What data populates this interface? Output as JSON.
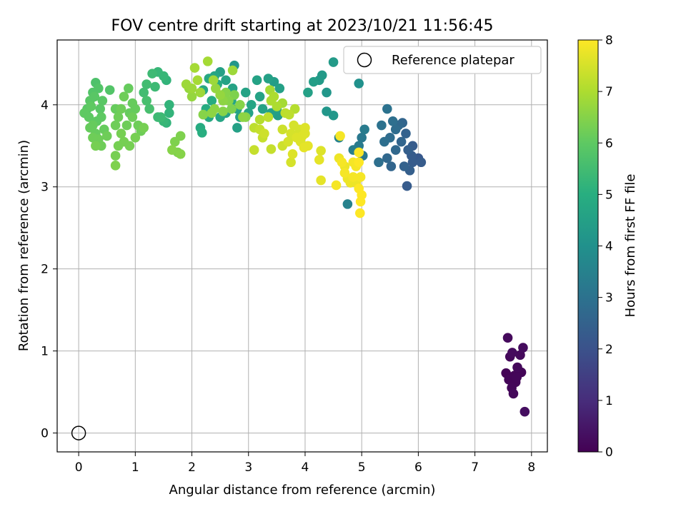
{
  "chart_data": {
    "type": "scatter",
    "title": "FOV centre drift starting at 2023/10/21 11:56:45",
    "xlabel": "Angular distance from reference (arcmin)",
    "ylabel": "Rotation from reference (arcmin)",
    "xlim": [
      -0.38,
      8.28
    ],
    "ylim": [
      -0.23,
      4.79
    ],
    "xticks": [
      0,
      1,
      2,
      3,
      4,
      5,
      6,
      7,
      8
    ],
    "yticks": [
      0,
      1,
      2,
      3,
      4
    ],
    "grid": true,
    "legend": {
      "position": "top-right",
      "entries": [
        "Reference platepar"
      ]
    },
    "reference_point": {
      "x": 0,
      "y": 0,
      "label": "Reference platepar"
    },
    "colorbar": {
      "label": "Hours from first FF file",
      "range": [
        0,
        8
      ],
      "ticks": [
        0,
        1,
        2,
        3,
        4,
        5,
        6,
        7,
        8
      ],
      "colormap": "viridis"
    },
    "points": [
      {
        "x": 7.55,
        "y": 0.73,
        "c": 0.05
      },
      {
        "x": 7.6,
        "y": 0.65,
        "c": 0.1
      },
      {
        "x": 7.65,
        "y": 0.55,
        "c": 0.12
      },
      {
        "x": 7.68,
        "y": 0.48,
        "c": 0.15
      },
      {
        "x": 7.7,
        "y": 0.7,
        "c": 0.1
      },
      {
        "x": 7.75,
        "y": 0.8,
        "c": 0.15
      },
      {
        "x": 7.8,
        "y": 0.95,
        "c": 0.2
      },
      {
        "x": 7.85,
        "y": 1.04,
        "c": 0.25
      },
      {
        "x": 7.58,
        "y": 1.16,
        "c": 0.2
      },
      {
        "x": 7.62,
        "y": 0.93,
        "c": 0.15
      },
      {
        "x": 7.72,
        "y": 0.62,
        "c": 0.1
      },
      {
        "x": 7.88,
        "y": 0.26,
        "c": 0.3
      },
      {
        "x": 7.82,
        "y": 0.74,
        "c": 0.1
      },
      {
        "x": 7.66,
        "y": 0.98,
        "c": 0.22
      },
      {
        "x": 7.74,
        "y": 0.68,
        "c": 0.12
      },
      {
        "x": 5.8,
        "y": 3.01,
        "c": 2.3
      },
      {
        "x": 5.85,
        "y": 3.2,
        "c": 2.4
      },
      {
        "x": 5.9,
        "y": 3.3,
        "c": 2.3
      },
      {
        "x": 6.0,
        "y": 3.35,
        "c": 2.2
      },
      {
        "x": 6.05,
        "y": 3.3,
        "c": 2.3
      },
      {
        "x": 5.75,
        "y": 3.25,
        "c": 2.5
      },
      {
        "x": 5.82,
        "y": 3.45,
        "c": 2.4
      },
      {
        "x": 5.88,
        "y": 3.38,
        "c": 2.3
      },
      {
        "x": 5.7,
        "y": 3.55,
        "c": 2.6
      },
      {
        "x": 5.78,
        "y": 3.65,
        "c": 2.5
      },
      {
        "x": 5.65,
        "y": 3.75,
        "c": 2.7
      },
      {
        "x": 5.6,
        "y": 3.7,
        "c": 2.8
      },
      {
        "x": 5.55,
        "y": 3.8,
        "c": 2.9
      },
      {
        "x": 5.45,
        "y": 3.95,
        "c": 3.0
      },
      {
        "x": 5.5,
        "y": 3.6,
        "c": 2.8
      },
      {
        "x": 5.4,
        "y": 3.55,
        "c": 2.9
      },
      {
        "x": 5.35,
        "y": 3.75,
        "c": 3.0
      },
      {
        "x": 5.45,
        "y": 3.35,
        "c": 2.7
      },
      {
        "x": 5.52,
        "y": 3.25,
        "c": 2.6
      },
      {
        "x": 5.6,
        "y": 3.45,
        "c": 2.7
      },
      {
        "x": 5.3,
        "y": 3.3,
        "c": 2.9
      },
      {
        "x": 5.72,
        "y": 3.78,
        "c": 2.6
      },
      {
        "x": 5.9,
        "y": 3.5,
        "c": 2.3
      },
      {
        "x": 5.0,
        "y": 3.6,
        "c": 3.2
      },
      {
        "x": 5.05,
        "y": 3.7,
        "c": 3.3
      },
      {
        "x": 4.95,
        "y": 3.5,
        "c": 3.3
      },
      {
        "x": 5.02,
        "y": 3.38,
        "c": 3.2
      },
      {
        "x": 4.85,
        "y": 3.45,
        "c": 3.4
      },
      {
        "x": 4.75,
        "y": 2.79,
        "c": 3.5
      },
      {
        "x": 4.6,
        "y": 3.6,
        "c": 3.5
      },
      {
        "x": 4.95,
        "y": 4.26,
        "c": 4.0
      },
      {
        "x": 4.5,
        "y": 4.52,
        "c": 4.3
      },
      {
        "x": 4.3,
        "y": 4.36,
        "c": 4.3
      },
      {
        "x": 4.25,
        "y": 4.3,
        "c": 4.3
      },
      {
        "x": 4.15,
        "y": 4.28,
        "c": 4.4
      },
      {
        "x": 4.05,
        "y": 4.15,
        "c": 4.5
      },
      {
        "x": 4.38,
        "y": 4.15,
        "c": 4.2
      },
      {
        "x": 4.38,
        "y": 3.92,
        "c": 4.2
      },
      {
        "x": 4.5,
        "y": 3.87,
        "c": 4.2
      },
      {
        "x": 3.55,
        "y": 4.2,
        "c": 4.5
      },
      {
        "x": 3.45,
        "y": 4.28,
        "c": 4.4
      },
      {
        "x": 3.35,
        "y": 4.32,
        "c": 4.5
      },
      {
        "x": 3.15,
        "y": 4.3,
        "c": 4.6
      },
      {
        "x": 3.2,
        "y": 4.1,
        "c": 4.6
      },
      {
        "x": 3.05,
        "y": 4.0,
        "c": 4.7
      },
      {
        "x": 3.25,
        "y": 3.95,
        "c": 4.6
      },
      {
        "x": 3.4,
        "y": 3.9,
        "c": 4.5
      },
      {
        "x": 3.5,
        "y": 3.95,
        "c": 4.5
      },
      {
        "x": 3.52,
        "y": 3.87,
        "c": 4.4
      },
      {
        "x": 2.95,
        "y": 4.15,
        "c": 4.6
      },
      {
        "x": 2.75,
        "y": 4.48,
        "c": 4.2
      },
      {
        "x": 2.5,
        "y": 4.4,
        "c": 4.5
      },
      {
        "x": 2.6,
        "y": 4.3,
        "c": 4.6
      },
      {
        "x": 2.4,
        "y": 4.35,
        "c": 4.7
      },
      {
        "x": 2.3,
        "y": 4.32,
        "c": 4.8
      },
      {
        "x": 2.2,
        "y": 4.18,
        "c": 4.8
      },
      {
        "x": 2.35,
        "y": 4.05,
        "c": 4.9
      },
      {
        "x": 2.25,
        "y": 3.95,
        "c": 4.9
      },
      {
        "x": 2.3,
        "y": 3.85,
        "c": 4.8
      },
      {
        "x": 2.5,
        "y": 3.85,
        "c": 4.7
      },
      {
        "x": 2.6,
        "y": 3.9,
        "c": 4.6
      },
      {
        "x": 2.7,
        "y": 4.05,
        "c": 4.7
      },
      {
        "x": 2.8,
        "y": 3.95,
        "c": 4.6
      },
      {
        "x": 2.85,
        "y": 3.85,
        "c": 4.5
      },
      {
        "x": 2.8,
        "y": 3.72,
        "c": 4.5
      },
      {
        "x": 2.15,
        "y": 3.72,
        "c": 4.9
      },
      {
        "x": 2.18,
        "y": 3.66,
        "c": 5.0
      },
      {
        "x": 2.45,
        "y": 4.25,
        "c": 4.8
      },
      {
        "x": 2.72,
        "y": 4.2,
        "c": 4.6
      },
      {
        "x": 3.0,
        "y": 3.9,
        "c": 4.6
      },
      {
        "x": 1.3,
        "y": 4.38,
        "c": 5.4
      },
      {
        "x": 1.4,
        "y": 4.4,
        "c": 5.3
      },
      {
        "x": 1.5,
        "y": 4.35,
        "c": 5.3
      },
      {
        "x": 1.55,
        "y": 4.3,
        "c": 5.2
      },
      {
        "x": 1.35,
        "y": 4.22,
        "c": 5.4
      },
      {
        "x": 1.2,
        "y": 4.25,
        "c": 5.5
      },
      {
        "x": 1.15,
        "y": 4.15,
        "c": 5.5
      },
      {
        "x": 1.2,
        "y": 4.05,
        "c": 5.6
      },
      {
        "x": 1.25,
        "y": 3.95,
        "c": 5.6
      },
      {
        "x": 1.4,
        "y": 3.85,
        "c": 5.4
      },
      {
        "x": 1.5,
        "y": 3.8,
        "c": 5.3
      },
      {
        "x": 1.6,
        "y": 3.9,
        "c": 5.2
      },
      {
        "x": 1.55,
        "y": 3.78,
        "c": 5.2
      },
      {
        "x": 1.6,
        "y": 4.0,
        "c": 5.2
      },
      {
        "x": 1.45,
        "y": 3.85,
        "c": 5.4
      },
      {
        "x": 0.1,
        "y": 3.9,
        "c": 6.0
      },
      {
        "x": 0.15,
        "y": 3.95,
        "c": 5.9
      },
      {
        "x": 0.2,
        "y": 4.05,
        "c": 5.9
      },
      {
        "x": 0.25,
        "y": 4.15,
        "c": 5.8
      },
      {
        "x": 0.3,
        "y": 4.27,
        "c": 5.7
      },
      {
        "x": 0.35,
        "y": 4.2,
        "c": 5.8
      },
      {
        "x": 0.28,
        "y": 4.1,
        "c": 5.9
      },
      {
        "x": 0.22,
        "y": 3.98,
        "c": 6.0
      },
      {
        "x": 0.18,
        "y": 3.85,
        "c": 6.0
      },
      {
        "x": 0.25,
        "y": 3.75,
        "c": 6.1
      },
      {
        "x": 0.3,
        "y": 3.65,
        "c": 6.1
      },
      {
        "x": 0.35,
        "y": 3.58,
        "c": 6.2
      },
      {
        "x": 0.4,
        "y": 3.5,
        "c": 6.2
      },
      {
        "x": 0.3,
        "y": 3.5,
        "c": 6.3
      },
      {
        "x": 0.25,
        "y": 3.6,
        "c": 6.2
      },
      {
        "x": 0.4,
        "y": 3.85,
        "c": 6.0
      },
      {
        "x": 0.45,
        "y": 3.7,
        "c": 6.1
      },
      {
        "x": 0.38,
        "y": 3.95,
        "c": 5.9
      },
      {
        "x": 0.42,
        "y": 4.05,
        "c": 5.9
      },
      {
        "x": 0.55,
        "y": 4.18,
        "c": 5.8
      },
      {
        "x": 0.5,
        "y": 3.62,
        "c": 6.2
      },
      {
        "x": 0.32,
        "y": 3.8,
        "c": 6.0
      },
      {
        "x": 0.2,
        "y": 3.72,
        "c": 6.1
      },
      {
        "x": 0.65,
        "y": 3.95,
        "c": 6.1
      },
      {
        "x": 0.7,
        "y": 3.85,
        "c": 6.2
      },
      {
        "x": 0.65,
        "y": 3.75,
        "c": 6.2
      },
      {
        "x": 0.75,
        "y": 3.65,
        "c": 6.3
      },
      {
        "x": 0.7,
        "y": 3.5,
        "c": 6.3
      },
      {
        "x": 0.65,
        "y": 3.38,
        "c": 6.3
      },
      {
        "x": 0.65,
        "y": 3.26,
        "c": 6.4
      },
      {
        "x": 0.8,
        "y": 3.55,
        "c": 6.3
      },
      {
        "x": 0.85,
        "y": 3.75,
        "c": 6.2
      },
      {
        "x": 0.9,
        "y": 3.9,
        "c": 6.1
      },
      {
        "x": 0.95,
        "y": 4.02,
        "c": 6.1
      },
      {
        "x": 1.0,
        "y": 3.95,
        "c": 6.1
      },
      {
        "x": 1.05,
        "y": 3.75,
        "c": 6.2
      },
      {
        "x": 1.1,
        "y": 3.68,
        "c": 6.2
      },
      {
        "x": 1.15,
        "y": 3.72,
        "c": 6.3
      },
      {
        "x": 1.0,
        "y": 3.6,
        "c": 6.3
      },
      {
        "x": 0.9,
        "y": 3.5,
        "c": 6.3
      },
      {
        "x": 0.8,
        "y": 4.1,
        "c": 6.2
      },
      {
        "x": 0.88,
        "y": 4.2,
        "c": 6.1
      },
      {
        "x": 0.75,
        "y": 3.95,
        "c": 6.2
      },
      {
        "x": 0.95,
        "y": 3.85,
        "c": 6.2
      },
      {
        "x": 1.7,
        "y": 3.55,
        "c": 6.4
      },
      {
        "x": 1.65,
        "y": 3.45,
        "c": 6.5
      },
      {
        "x": 1.75,
        "y": 3.42,
        "c": 6.4
      },
      {
        "x": 1.8,
        "y": 3.4,
        "c": 6.5
      },
      {
        "x": 1.8,
        "y": 3.62,
        "c": 6.4
      },
      {
        "x": 1.9,
        "y": 4.25,
        "c": 6.8
      },
      {
        "x": 2.0,
        "y": 4.2,
        "c": 6.8
      },
      {
        "x": 2.05,
        "y": 4.45,
        "c": 6.9
      },
      {
        "x": 2.1,
        "y": 4.3,
        "c": 6.9
      },
      {
        "x": 2.15,
        "y": 4.15,
        "c": 6.8
      },
      {
        "x": 2.28,
        "y": 4.53,
        "c": 6.9
      },
      {
        "x": 2.38,
        "y": 4.3,
        "c": 6.8
      },
      {
        "x": 2.42,
        "y": 4.2,
        "c": 6.7
      },
      {
        "x": 2.5,
        "y": 4.12,
        "c": 6.7
      },
      {
        "x": 2.55,
        "y": 4.05,
        "c": 6.6
      },
      {
        "x": 2.4,
        "y": 3.95,
        "c": 6.6
      },
      {
        "x": 2.35,
        "y": 3.9,
        "c": 6.6
      },
      {
        "x": 2.2,
        "y": 3.88,
        "c": 6.5
      },
      {
        "x": 2.6,
        "y": 4.15,
        "c": 6.5
      },
      {
        "x": 2.65,
        "y": 4.05,
        "c": 6.5
      },
      {
        "x": 2.7,
        "y": 3.95,
        "c": 6.4
      },
      {
        "x": 2.75,
        "y": 4.12,
        "c": 6.4
      },
      {
        "x": 2.85,
        "y": 4.0,
        "c": 6.5
      },
      {
        "x": 2.9,
        "y": 3.85,
        "c": 6.6
      },
      {
        "x": 2.95,
        "y": 3.85,
        "c": 6.5
      },
      {
        "x": 2.72,
        "y": 4.42,
        "c": 6.8
      },
      {
        "x": 2.55,
        "y": 3.92,
        "c": 6.5
      },
      {
        "x": 2.0,
        "y": 4.1,
        "c": 6.7
      },
      {
        "x": 1.95,
        "y": 4.2,
        "c": 6.7
      },
      {
        "x": 3.1,
        "y": 3.72,
        "c": 7.2
      },
      {
        "x": 3.2,
        "y": 3.82,
        "c": 7.1
      },
      {
        "x": 3.25,
        "y": 3.6,
        "c": 7.3
      },
      {
        "x": 3.35,
        "y": 3.85,
        "c": 7.2
      },
      {
        "x": 3.4,
        "y": 4.05,
        "c": 7.0
      },
      {
        "x": 3.45,
        "y": 4.1,
        "c": 7.0
      },
      {
        "x": 3.5,
        "y": 3.98,
        "c": 7.0
      },
      {
        "x": 3.6,
        "y": 4.02,
        "c": 6.9
      },
      {
        "x": 3.38,
        "y": 4.18,
        "c": 6.9
      },
      {
        "x": 3.1,
        "y": 3.45,
        "c": 7.3
      },
      {
        "x": 3.28,
        "y": 3.65,
        "c": 7.4
      },
      {
        "x": 3.4,
        "y": 3.46,
        "c": 7.3
      },
      {
        "x": 3.6,
        "y": 3.7,
        "c": 7.4
      },
      {
        "x": 3.6,
        "y": 3.5,
        "c": 7.4
      },
      {
        "x": 3.7,
        "y": 3.55,
        "c": 7.5
      },
      {
        "x": 3.75,
        "y": 3.65,
        "c": 7.5
      },
      {
        "x": 3.8,
        "y": 3.75,
        "c": 7.5
      },
      {
        "x": 3.9,
        "y": 3.7,
        "c": 7.5
      },
      {
        "x": 3.95,
        "y": 3.62,
        "c": 7.6
      },
      {
        "x": 4.0,
        "y": 3.65,
        "c": 7.6
      },
      {
        "x": 4.0,
        "y": 3.72,
        "c": 7.6
      },
      {
        "x": 3.92,
        "y": 3.55,
        "c": 7.6
      },
      {
        "x": 3.85,
        "y": 3.6,
        "c": 7.6
      },
      {
        "x": 3.8,
        "y": 3.62,
        "c": 7.5
      },
      {
        "x": 4.05,
        "y": 3.5,
        "c": 7.7
      },
      {
        "x": 3.98,
        "y": 3.48,
        "c": 7.7
      },
      {
        "x": 3.78,
        "y": 3.4,
        "c": 7.6
      },
      {
        "x": 3.75,
        "y": 3.3,
        "c": 7.5
      },
      {
        "x": 3.72,
        "y": 3.88,
        "c": 7.2
      },
      {
        "x": 3.82,
        "y": 3.95,
        "c": 7.1
      },
      {
        "x": 3.65,
        "y": 3.9,
        "c": 7.2
      },
      {
        "x": 3.2,
        "y": 3.7,
        "c": 7.3
      },
      {
        "x": 4.28,
        "y": 3.44,
        "c": 7.6
      },
      {
        "x": 4.25,
        "y": 3.33,
        "c": 7.7
      },
      {
        "x": 4.28,
        "y": 3.08,
        "c": 7.7
      },
      {
        "x": 4.62,
        "y": 3.62,
        "c": 7.9
      },
      {
        "x": 4.6,
        "y": 3.35,
        "c": 7.8
      },
      {
        "x": 4.65,
        "y": 3.3,
        "c": 7.9
      },
      {
        "x": 4.7,
        "y": 3.17,
        "c": 7.9
      },
      {
        "x": 4.75,
        "y": 3.1,
        "c": 7.8
      },
      {
        "x": 4.8,
        "y": 3.05,
        "c": 7.8
      },
      {
        "x": 4.85,
        "y": 3.12,
        "c": 7.9
      },
      {
        "x": 4.9,
        "y": 3.25,
        "c": 7.9
      },
      {
        "x": 4.95,
        "y": 3.3,
        "c": 8.0
      },
      {
        "x": 4.95,
        "y": 3.42,
        "c": 8.0
      },
      {
        "x": 4.98,
        "y": 3.12,
        "c": 7.9
      },
      {
        "x": 4.95,
        "y": 2.98,
        "c": 8.0
      },
      {
        "x": 5.0,
        "y": 2.9,
        "c": 8.0
      },
      {
        "x": 4.98,
        "y": 2.82,
        "c": 8.0
      },
      {
        "x": 4.97,
        "y": 2.68,
        "c": 8.0
      },
      {
        "x": 4.55,
        "y": 3.02,
        "c": 7.9
      },
      {
        "x": 4.85,
        "y": 3.3,
        "c": 7.9
      },
      {
        "x": 4.9,
        "y": 3.05,
        "c": 7.8
      },
      {
        "x": 4.7,
        "y": 3.25,
        "c": 7.8
      }
    ]
  }
}
